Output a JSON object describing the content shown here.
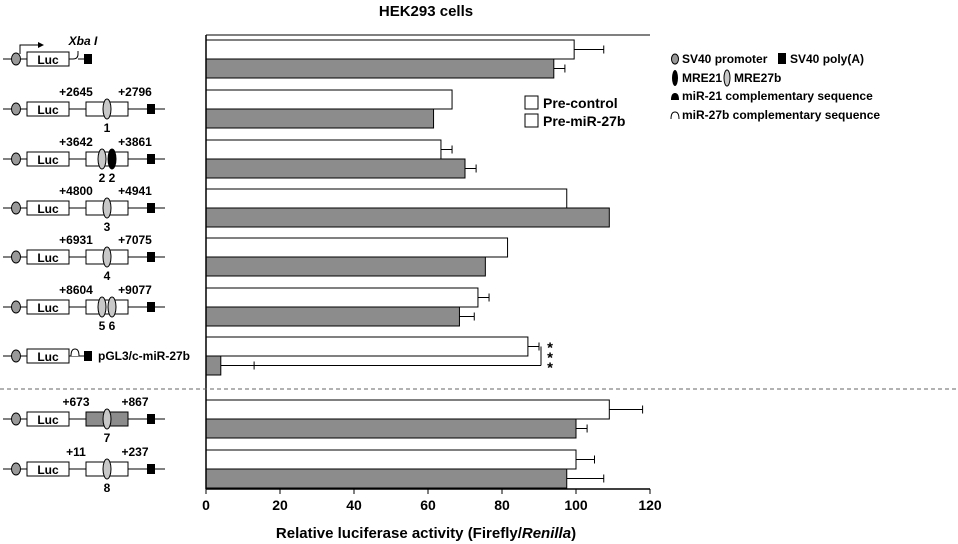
{
  "chart_data": {
    "type": "bar",
    "orientation": "horizontal",
    "title": "HEK293 cells",
    "xlabel_parts": [
      "Relative luciferase activity (Firefly/",
      "Renilla",
      ")"
    ],
    "xlim": [
      0,
      120
    ],
    "xticks": [
      "0",
      "20",
      "40",
      "60",
      "80",
      "100",
      "120"
    ],
    "series": [
      {
        "name": "Pre-control",
        "color": "#ffffff"
      },
      {
        "name": "Pre-miR-27b",
        "color": "#8c8c8c"
      }
    ],
    "groups": [
      {
        "construct": {
          "type": "xba",
          "label": "Xba I"
        },
        "values": [
          99.5,
          94
        ],
        "errors": [
          8,
          3
        ]
      },
      {
        "construct": {
          "type": "insert",
          "start": "+2645",
          "end": "+2796",
          "mres": [
            "1"
          ]
        },
        "values": [
          66.5,
          61.5
        ],
        "errors": [
          0,
          0
        ]
      },
      {
        "construct": {
          "type": "insert",
          "start": "+3642",
          "end": "+3861",
          "mres": [
            "2",
            "2"
          ],
          "mre21": true
        },
        "values": [
          63.5,
          70
        ],
        "errors": [
          3,
          3
        ]
      },
      {
        "construct": {
          "type": "insert",
          "start": "+4800",
          "end": "+4941",
          "mres": [
            "3"
          ]
        },
        "values": [
          97.5,
          109
        ],
        "errors": [
          0,
          0
        ]
      },
      {
        "construct": {
          "type": "insert",
          "start": "+6931",
          "end": "+7075",
          "mres": [
            "4"
          ]
        },
        "values": [
          81.5,
          75.5
        ],
        "errors": [
          0,
          0
        ]
      },
      {
        "construct": {
          "type": "insert",
          "start": "+8604",
          "end": "+9077",
          "mres": [
            "5",
            "6"
          ]
        },
        "values": [
          73.5,
          68.5
        ],
        "errors": [
          3,
          4
        ]
      },
      {
        "construct": {
          "type": "complementary",
          "label": "pGL3/c-miR-27b"
        },
        "values": [
          87,
          4
        ],
        "errors": [
          3,
          9
        ],
        "significance": [
          "*",
          "*",
          "*"
        ]
      },
      {
        "construct": {
          "type": "insert",
          "start": "+673",
          "end": "+867",
          "mres": [
            "7"
          ],
          "filled": true
        },
        "values": [
          109,
          100
        ],
        "errors": [
          9,
          3
        ]
      },
      {
        "construct": {
          "type": "insert",
          "start": "+11",
          "end": "+237",
          "mres": [
            "8"
          ]
        },
        "values": [
          100,
          97.5
        ],
        "errors": [
          5,
          10
        ]
      }
    ],
    "key": [
      {
        "symbol": "sv40-promoter",
        "text": "SV40 promoter"
      },
      {
        "symbol": "sv40-polya",
        "text": "SV40 poly(A)"
      },
      {
        "symbol": "mre21",
        "text": "MRE21"
      },
      {
        "symbol": "mre27b",
        "text": "MRE27b"
      },
      {
        "symbol": "mir21-comp",
        "text": "miR-21 complementary sequence"
      },
      {
        "symbol": "mir27b-comp",
        "text": "miR-27b complementary sequence"
      }
    ],
    "luc_label": "Luc"
  }
}
